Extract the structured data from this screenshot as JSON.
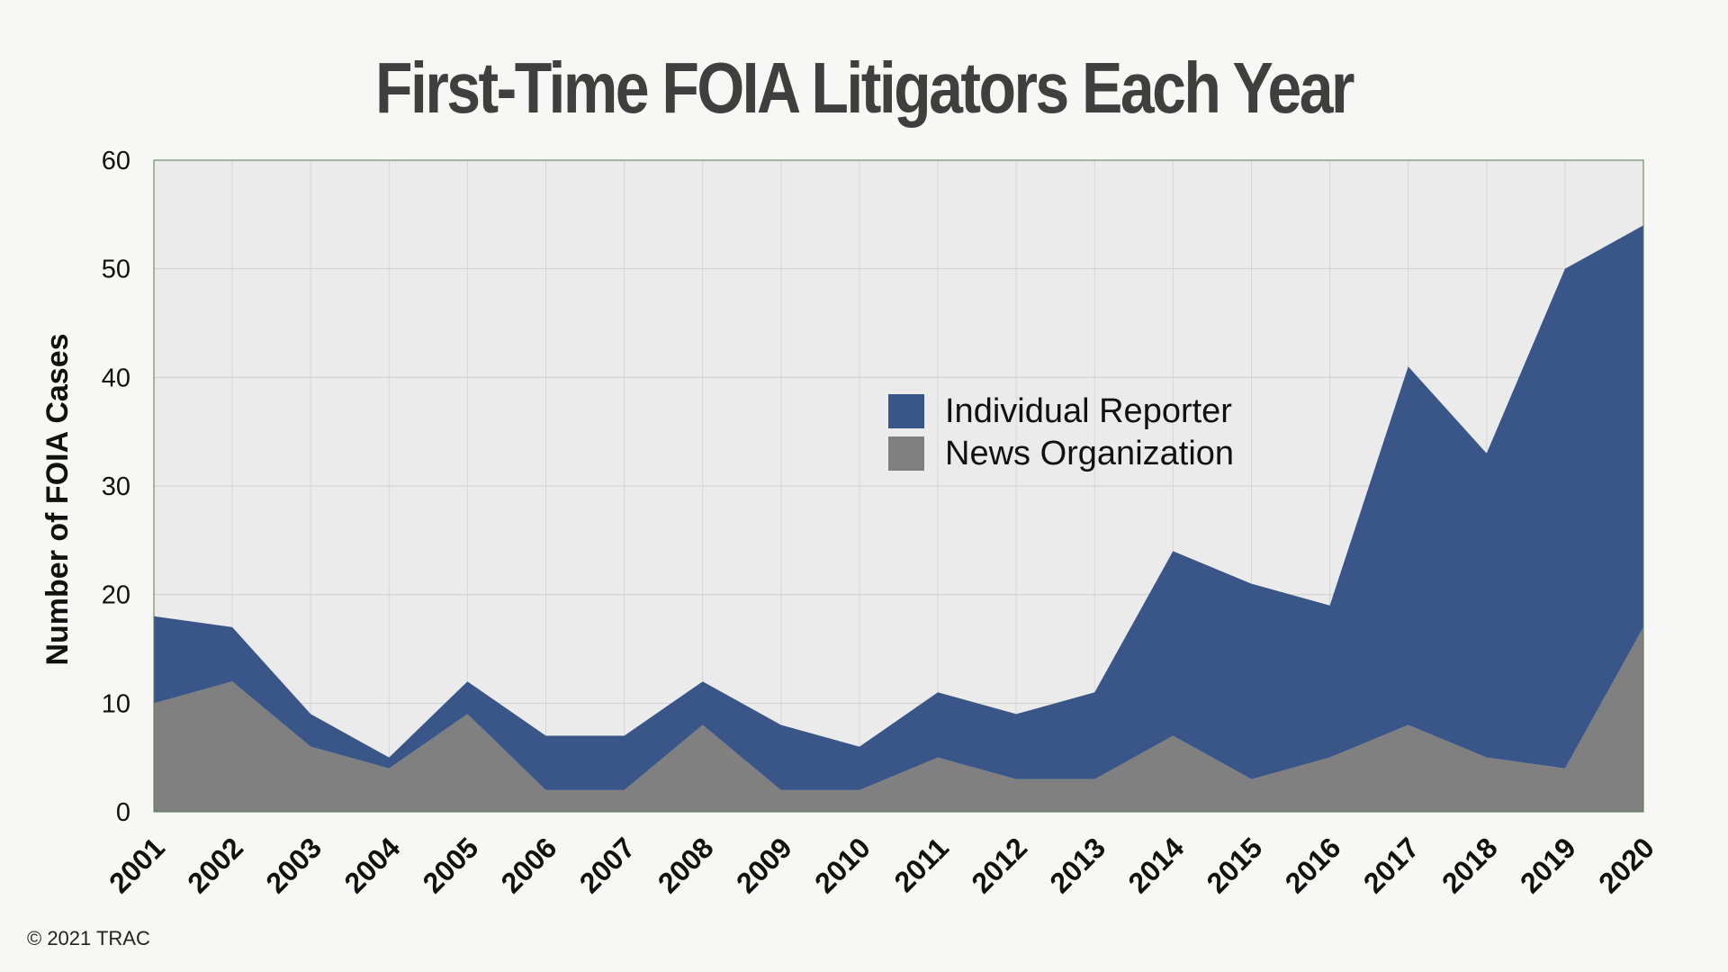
{
  "chart_data": {
    "type": "area",
    "stacked": true,
    "title": "First-Time FOIA Litigators Each Year",
    "xlabel": "",
    "ylabel": "Number of FOIA Cases",
    "ylim": [
      0,
      60
    ],
    "yticks": [
      0,
      10,
      20,
      30,
      40,
      50,
      60
    ],
    "grid": true,
    "legend_position": "center-right",
    "categories": [
      "2001",
      "2002",
      "2003",
      "2004",
      "2005",
      "2006",
      "2007",
      "2008",
      "2009",
      "2010",
      "2011",
      "2012",
      "2013",
      "2014",
      "2015",
      "2016",
      "2017",
      "2018",
      "2019",
      "2020"
    ],
    "series": [
      {
        "name": "News Organization",
        "color": "#808080",
        "values": [
          10,
          12,
          6,
          4,
          9,
          2,
          2,
          8,
          2,
          2,
          5,
          3,
          3,
          7,
          3,
          5,
          8,
          5,
          4,
          17
        ]
      },
      {
        "name": "Individual Reporter",
        "color": "#3a5688",
        "values": [
          8,
          5,
          3,
          1,
          3,
          5,
          5,
          4,
          6,
          4,
          6,
          6,
          8,
          17,
          18,
          14,
          33,
          28,
          46,
          37
        ]
      }
    ],
    "legend_order": [
      "Individual Reporter",
      "News Organization"
    ]
  },
  "footer": {
    "copyright": "© 2021 TRAC"
  },
  "colors": {
    "plot_background": "#ebebeb",
    "page_background": "#f7f7f5",
    "title": "#3f3f3f"
  }
}
